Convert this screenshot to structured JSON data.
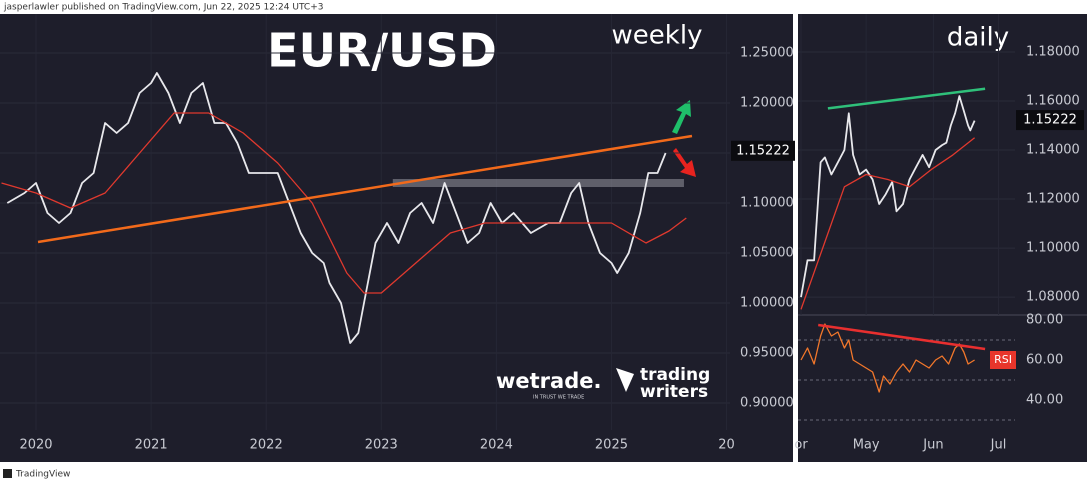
{
  "header": {
    "publisher": "jasperlawler published on TradingView.com, Jun 22, 2025 12:24 UTC+3"
  },
  "footer": {
    "brand": "TradingView"
  },
  "logos": [
    "wetrade.",
    "IN TRUST WE TRADE",
    "trading",
    "writers"
  ],
  "chart_data": [
    {
      "type": "line",
      "title": "EUR/USD",
      "subtitle": "weekly",
      "xlim": [
        2019.687,
        2026.03
      ],
      "ylim": [
        0.873,
        1.289
      ],
      "grid": true,
      "xticks": [
        2020,
        2021,
        2022,
        2023,
        2024,
        2025,
        {
          "value": 2026,
          "label": "20"
        }
      ],
      "yticks": [
        {
          "value": 1.25,
          "label": "1.25000"
        },
        {
          "value": 1.2,
          "label": "1.20000"
        },
        {
          "value": 1.15,
          "label": "1.15000"
        },
        {
          "value": 1.1,
          "label": "1.10000"
        },
        {
          "value": 1.05,
          "label": "1.05000"
        },
        {
          "value": 1.0,
          "label": "1.00000"
        },
        {
          "value": 0.95,
          "label": "0.95000"
        },
        {
          "value": 0.9,
          "label": "0.90000"
        }
      ],
      "series": [
        {
          "color": "#e8e8ec",
          "x": [
            2019.75,
            2019.9,
            2020.0,
            2020.1,
            2020.2,
            2020.3,
            2020.4,
            2020.5,
            2020.6,
            2020.7,
            2020.8,
            2020.9,
            2021.0,
            2021.05,
            2021.15,
            2021.25,
            2021.35,
            2021.45,
            2021.55,
            2021.65,
            2021.75,
            2021.85,
            2021.95,
            2022.1,
            2022.2,
            2022.3,
            2022.4,
            2022.5,
            2022.55,
            2022.65,
            2022.73,
            2022.8,
            2022.85,
            2022.95,
            2023.05,
            2023.15,
            2023.25,
            2023.35,
            2023.45,
            2023.55,
            2023.65,
            2023.75,
            2023.85,
            2023.95,
            2024.05,
            2024.15,
            2024.3,
            2024.45,
            2024.55,
            2024.65,
            2024.72,
            2024.8,
            2024.9,
            2025.0,
            2025.05,
            2025.15,
            2025.25,
            2025.32,
            2025.4,
            2025.47
          ],
          "values": [
            1.1,
            1.11,
            1.12,
            1.09,
            1.08,
            1.09,
            1.12,
            1.13,
            1.18,
            1.17,
            1.18,
            1.21,
            1.22,
            1.23,
            1.21,
            1.18,
            1.21,
            1.22,
            1.18,
            1.18,
            1.16,
            1.13,
            1.13,
            1.13,
            1.1,
            1.07,
            1.05,
            1.04,
            1.02,
            1.0,
            0.96,
            0.97,
            1.0,
            1.06,
            1.08,
            1.06,
            1.09,
            1.1,
            1.08,
            1.12,
            1.09,
            1.06,
            1.07,
            1.1,
            1.08,
            1.09,
            1.07,
            1.08,
            1.08,
            1.11,
            1.12,
            1.08,
            1.05,
            1.04,
            1.03,
            1.05,
            1.09,
            1.13,
            1.13,
            1.15
          ]
        },
        {
          "color": "#e0392e",
          "x": [
            2019.7,
            2020.0,
            2020.3,
            2020.6,
            2020.9,
            2021.2,
            2021.5,
            2021.8,
            2022.1,
            2022.4,
            2022.7,
            2022.85,
            2023.0,
            2023.3,
            2023.6,
            2023.9,
            2024.3,
            2024.7,
            2025.0,
            2025.3,
            2025.5,
            2025.65
          ],
          "values": [
            1.12,
            1.11,
            1.095,
            1.11,
            1.15,
            1.19,
            1.19,
            1.17,
            1.14,
            1.1,
            1.03,
            1.01,
            1.01,
            1.04,
            1.07,
            1.08,
            1.08,
            1.08,
            1.08,
            1.06,
            1.072,
            1.085
          ]
        }
      ],
      "lines": [
        {
          "color": "#f26a1b",
          "x": [
            2020.017,
            2025.7
          ],
          "values": [
            1.061,
            1.167
          ]
        }
      ],
      "zones": [
        {
          "color": "#8a8b95",
          "x": [
            2023.1,
            2025.63
          ],
          "values": [
            1.124,
            1.116
          ]
        }
      ],
      "last_price": 1.15222
    },
    {
      "type": "line",
      "subtitle": "daily",
      "xlim": [
        -1.4,
        98.6
      ],
      "ylim": [
        1.0727,
        1.1955
      ],
      "grid": true,
      "xticks": [
        {
          "value": 0,
          "label": "or"
        },
        {
          "value": 30,
          "label": "May"
        },
        {
          "value": 61,
          "label": "Jun"
        },
        {
          "value": 91,
          "label": "Jul"
        }
      ],
      "yticks": [
        {
          "value": 1.18,
          "label": "1.18000"
        },
        {
          "value": 1.16,
          "label": "1.16000"
        },
        {
          "value": 1.14,
          "label": "1.14000"
        },
        {
          "value": 1.12,
          "label": "1.12000"
        },
        {
          "value": 1.1,
          "label": "1.10000"
        },
        {
          "value": 1.08,
          "label": "1.08000"
        }
      ],
      "series": [
        {
          "color": "#e8e8ec",
          "x": [
            0,
            3,
            6,
            9,
            11,
            14,
            17,
            20,
            22,
            24,
            27,
            30,
            33,
            36,
            39,
            42,
            44,
            47,
            50,
            53,
            56,
            59,
            62,
            65,
            67,
            69,
            71,
            73,
            75,
            77,
            78,
            80
          ],
          "values": [
            1.08,
            1.095,
            1.095,
            1.135,
            1.137,
            1.13,
            1.135,
            1.14,
            1.155,
            1.138,
            1.13,
            1.132,
            1.128,
            1.118,
            1.122,
            1.127,
            1.115,
            1.118,
            1.128,
            1.133,
            1.138,
            1.133,
            1.14,
            1.142,
            1.143,
            1.15,
            1.155,
            1.162,
            1.156,
            1.15,
            1.148,
            1.152
          ]
        },
        {
          "color": "#e0392e",
          "x": [
            0,
            10,
            20,
            30,
            40,
            50,
            60,
            70,
            80
          ],
          "values": [
            1.075,
            1.1,
            1.125,
            1.13,
            1.128,
            1.125,
            1.132,
            1.138,
            1.145
          ]
        }
      ],
      "lines": [
        {
          "color": "#2fc07a",
          "x": [
            12.4,
            84.8
          ],
          "values": [
            1.157,
            1.165
          ]
        }
      ],
      "last_price": 1.15222
    },
    {
      "type": "line",
      "title": "RSI",
      "xlim": [
        -1.4,
        98.6
      ],
      "ylim": [
        24,
        82.5
      ],
      "yticks": [
        {
          "value": 80,
          "label": "80.00"
        },
        {
          "value": 60,
          "label": "60.00"
        },
        {
          "value": 40,
          "label": "40.00"
        }
      ],
      "bands": [
        70,
        50,
        30
      ],
      "series": [
        {
          "color": "#f2772b",
          "x": [
            0,
            3,
            6,
            9,
            11,
            14,
            17,
            20,
            22,
            24,
            27,
            30,
            33,
            36,
            38,
            41,
            44,
            47,
            50,
            53,
            56,
            59,
            62,
            65,
            68,
            71,
            73,
            75,
            77,
            80
          ],
          "values": [
            60,
            66,
            58,
            72,
            78,
            72,
            74,
            66,
            70,
            60,
            58,
            56,
            54,
            44,
            52,
            48,
            54,
            58,
            54,
            60,
            58,
            56,
            60,
            62,
            58,
            66,
            68,
            64,
            58,
            60
          ]
        }
      ],
      "lines": [
        {
          "color": "#e82f2f",
          "x": [
            7.9,
            84.8
          ],
          "values": [
            77.5,
            65.5
          ]
        }
      ]
    }
  ]
}
